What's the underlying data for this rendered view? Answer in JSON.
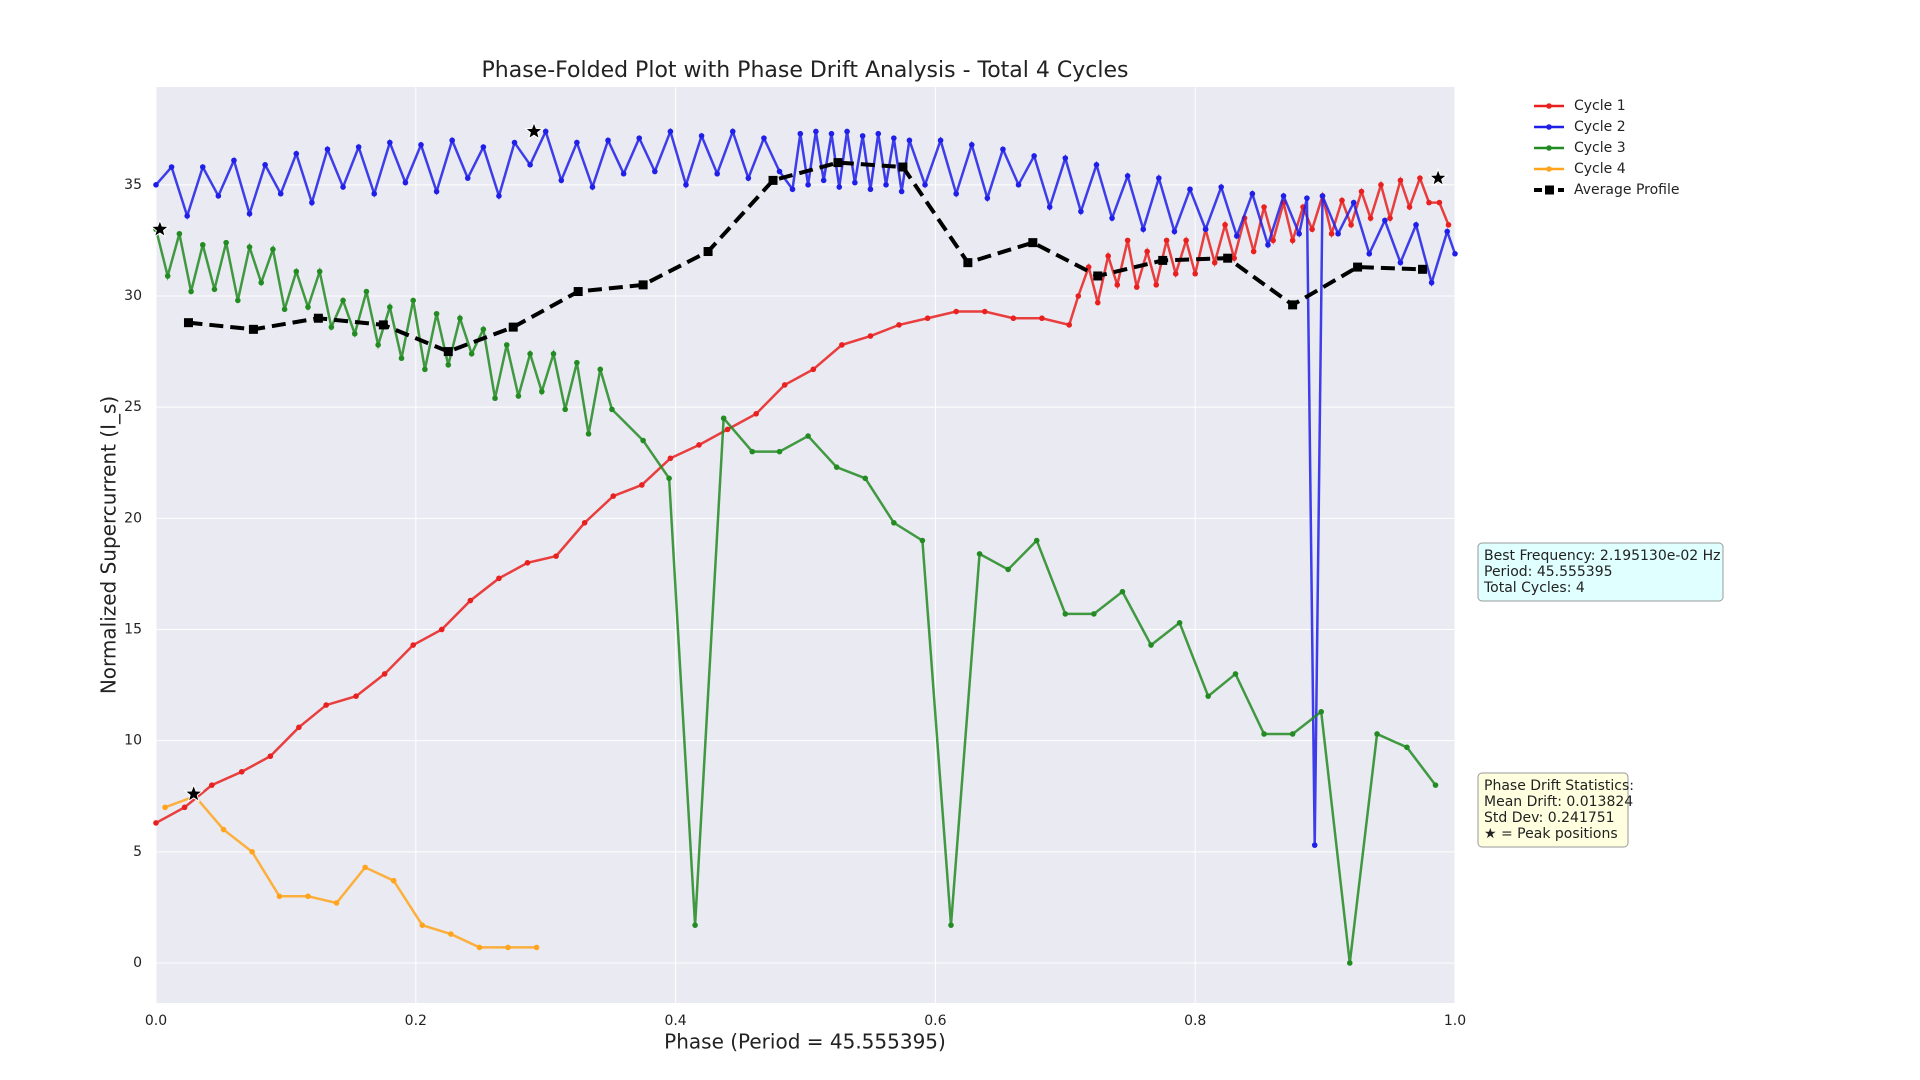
{
  "chart_data": {
    "type": "line",
    "title": "Phase-Folded Plot with Phase Drift Analysis - Total 4 Cycles",
    "x_label": "Phase (Period = 45.555395)",
    "y_label": "Normalized Supercurrent (I_s)",
    "xlim": [
      0,
      1
    ],
    "ylim": [
      -1.8,
      39.4
    ],
    "xticks": [
      {
        "value": 0,
        "label": "0.0"
      },
      {
        "value": 0.2,
        "label": "0.2"
      },
      {
        "value": 0.4,
        "label": "0.4"
      },
      {
        "value": 0.6,
        "label": "0.6"
      },
      {
        "value": 0.8,
        "label": "0.8"
      },
      {
        "value": 1,
        "label": "1.0"
      }
    ],
    "yticks": [
      0,
      5,
      10,
      15,
      20,
      25,
      30,
      35
    ],
    "grid": true,
    "legend": "outside-upper-right",
    "series": [
      {
        "name": "Cycle 1",
        "color": "#e8201f",
        "x": [
          0,
          0.022,
          0.043,
          0.066,
          0.088,
          0.11,
          0.131,
          0.154,
          0.176,
          0.198,
          0.22,
          0.242,
          0.264,
          0.286,
          0.308,
          0.33,
          0.352,
          0.374,
          0.396,
          0.418,
          0.44,
          0.462,
          0.484,
          0.506,
          0.528,
          0.55,
          0.572,
          0.594,
          0.616,
          0.638,
          0.66,
          0.682,
          0.703,
          0.71,
          0.718,
          0.725,
          0.733,
          0.74,
          0.748,
          0.755,
          0.763,
          0.77,
          0.778,
          0.785,
          0.793,
          0.8,
          0.808,
          0.815,
          0.823,
          0.83,
          0.838,
          0.845,
          0.853,
          0.86,
          0.868,
          0.875,
          0.883,
          0.89,
          0.898,
          0.905,
          0.913,
          0.92,
          0.928,
          0.935,
          0.943,
          0.95,
          0.958,
          0.965,
          0.973,
          0.98,
          0.988,
          0.995
        ],
        "values": [
          6.3,
          7.0,
          8.0,
          8.6,
          9.3,
          10.6,
          11.6,
          12.0,
          13.0,
          14.3,
          15.0,
          16.3,
          17.3,
          18.0,
          18.3,
          19.8,
          21.0,
          21.5,
          22.7,
          23.3,
          24.0,
          24.7,
          26.0,
          26.7,
          27.8,
          28.2,
          28.7,
          29.0,
          29.3,
          29.3,
          29.0,
          29.0,
          28.7,
          30.0,
          31.3,
          29.7,
          31.8,
          30.5,
          32.5,
          30.4,
          32.0,
          30.5,
          32.5,
          31.0,
          32.5,
          31.0,
          33.0,
          31.5,
          33.2,
          31.7,
          33.5,
          32.0,
          34.0,
          32.5,
          34.2,
          32.5,
          34.0,
          33.0,
          34.5,
          32.8,
          34.3,
          33.2,
          34.7,
          33.5,
          35.0,
          33.5,
          35.2,
          34.0,
          35.3,
          34.2,
          34.2,
          33.2
        ]
      },
      {
        "name": "Cycle 2",
        "color": "#1f1fe8",
        "x": [
          0,
          0.012,
          0.024,
          0.036,
          0.048,
          0.06,
          0.072,
          0.084,
          0.096,
          0.108,
          0.12,
          0.132,
          0.144,
          0.156,
          0.168,
          0.18,
          0.192,
          0.204,
          0.216,
          0.228,
          0.24,
          0.252,
          0.264,
          0.276,
          0.288,
          0.3,
          0.312,
          0.324,
          0.336,
          0.348,
          0.36,
          0.372,
          0.384,
          0.396,
          0.408,
          0.42,
          0.432,
          0.444,
          0.456,
          0.468,
          0.48,
          0.49,
          0.496,
          0.502,
          0.508,
          0.514,
          0.52,
          0.526,
          0.532,
          0.538,
          0.544,
          0.55,
          0.556,
          0.562,
          0.568,
          0.574,
          0.58,
          0.592,
          0.604,
          0.616,
          0.628,
          0.64,
          0.652,
          0.664,
          0.676,
          0.688,
          0.7,
          0.712,
          0.724,
          0.736,
          0.748,
          0.76,
          0.772,
          0.784,
          0.796,
          0.808,
          0.82,
          0.832,
          0.844,
          0.856,
          0.868,
          0.88,
          0.886,
          0.892,
          0.898,
          0.91,
          0.922,
          0.934,
          0.946,
          0.958,
          0.97,
          0.982,
          0.994,
          1.0
        ],
        "values": [
          35.0,
          35.8,
          33.6,
          35.8,
          34.5,
          36.1,
          33.7,
          35.9,
          34.6,
          36.4,
          34.2,
          36.6,
          34.9,
          36.7,
          34.6,
          36.9,
          35.1,
          36.8,
          34.7,
          37.0,
          35.3,
          36.7,
          34.5,
          36.9,
          35.9,
          37.4,
          35.2,
          36.9,
          34.9,
          37.0,
          35.5,
          37.1,
          35.6,
          37.4,
          35.0,
          37.2,
          35.5,
          37.4,
          35.3,
          37.1,
          35.6,
          34.8,
          37.3,
          35.0,
          37.4,
          35.2,
          37.3,
          34.9,
          37.4,
          35.1,
          37.2,
          34.8,
          37.3,
          35.0,
          37.1,
          34.7,
          37.0,
          35.0,
          37.0,
          34.6,
          36.8,
          34.4,
          36.6,
          35.0,
          36.3,
          34.0,
          36.2,
          33.8,
          35.9,
          33.5,
          35.4,
          33.0,
          35.3,
          32.9,
          34.8,
          33.0,
          34.9,
          32.7,
          34.6,
          32.3,
          34.5,
          32.8,
          34.4,
          5.3,
          34.5,
          32.8,
          34.2,
          31.9,
          33.4,
          31.5,
          33.2,
          30.6,
          32.9,
          31.9
        ]
      },
      {
        "name": "Cycle 3",
        "color": "#228b22",
        "x": [
          0,
          0.009,
          0.018,
          0.027,
          0.036,
          0.045,
          0.054,
          0.063,
          0.072,
          0.081,
          0.09,
          0.099,
          0.108,
          0.117,
          0.126,
          0.135,
          0.144,
          0.153,
          0.162,
          0.171,
          0.18,
          0.189,
          0.198,
          0.207,
          0.216,
          0.225,
          0.234,
          0.243,
          0.252,
          0.261,
          0.27,
          0.279,
          0.288,
          0.297,
          0.306,
          0.315,
          0.324,
          0.333,
          0.342,
          0.351,
          0.375,
          0.395,
          0.415,
          0.437,
          0.459,
          0.48,
          0.502,
          0.524,
          0.546,
          0.568,
          0.59,
          0.612,
          0.634,
          0.656,
          0.678,
          0.7,
          0.722,
          0.744,
          0.766,
          0.788,
          0.81,
          0.831,
          0.853,
          0.875,
          0.897,
          0.919,
          0.94,
          0.963,
          0.985
        ],
        "values": [
          33.0,
          30.9,
          32.8,
          30.2,
          32.3,
          30.3,
          32.4,
          29.8,
          32.2,
          30.6,
          32.1,
          29.4,
          31.1,
          29.5,
          31.1,
          28.6,
          29.8,
          28.3,
          30.2,
          27.8,
          29.5,
          27.2,
          29.8,
          26.7,
          29.2,
          26.9,
          29.0,
          27.4,
          28.5,
          25.4,
          27.8,
          25.5,
          27.4,
          25.7,
          27.4,
          24.9,
          27.0,
          23.8,
          26.7,
          24.9,
          23.5,
          21.8,
          1.7,
          24.5,
          23.0,
          23.0,
          23.7,
          22.3,
          21.8,
          19.8,
          19.0,
          1.7,
          18.4,
          17.7,
          19.0,
          15.7,
          15.7,
          16.7,
          14.3,
          15.3,
          12.0,
          13.0,
          10.3,
          10.3,
          11.3,
          0.0,
          10.3,
          9.7,
          8.0
        ]
      },
      {
        "name": "Cycle 4",
        "color": "#ffa41c",
        "x": [
          0.007,
          0.03,
          0.052,
          0.074,
          0.095,
          0.117,
          0.139,
          0.161,
          0.183,
          0.205,
          0.227,
          0.249,
          0.271,
          0.293
        ],
        "values": [
          7.0,
          7.5,
          6.0,
          5.0,
          3.0,
          3.0,
          2.7,
          4.3,
          3.7,
          1.7,
          1.3,
          0.7,
          0.7,
          0.7
        ]
      },
      {
        "name": "Average Profile",
        "color": "#000000",
        "style": "dashed",
        "x": [
          0.025,
          0.075,
          0.125,
          0.175,
          0.225,
          0.275,
          0.325,
          0.375,
          0.425,
          0.475,
          0.525,
          0.575,
          0.625,
          0.675,
          0.725,
          0.775,
          0.825,
          0.875,
          0.925,
          0.975
        ],
        "values": [
          28.8,
          28.5,
          29.0,
          28.7,
          27.5,
          28.6,
          30.2,
          30.5,
          32.0,
          35.2,
          36.0,
          35.8,
          31.5,
          32.4,
          30.9,
          31.6,
          31.7,
          29.6,
          31.3,
          31.2
        ]
      }
    ],
    "peaks": {
      "x": [
        0.987,
        0.291,
        0.003,
        0.029
      ],
      "values": [
        35.3,
        37.4,
        33.0,
        7.6
      ]
    },
    "annotations": [
      {
        "lines": [
          "Best Frequency: 2.195130e-02 Hz",
          "Period: 45.555395",
          "Total Cycles: 4"
        ],
        "color": "#e0ffff"
      },
      {
        "lines": [
          "Phase Drift Statistics:",
          "Mean Drift: 0.013824",
          "Std Dev: 0.241751",
          "★ = Peak positions"
        ],
        "color": "#ffffe0"
      }
    ]
  }
}
